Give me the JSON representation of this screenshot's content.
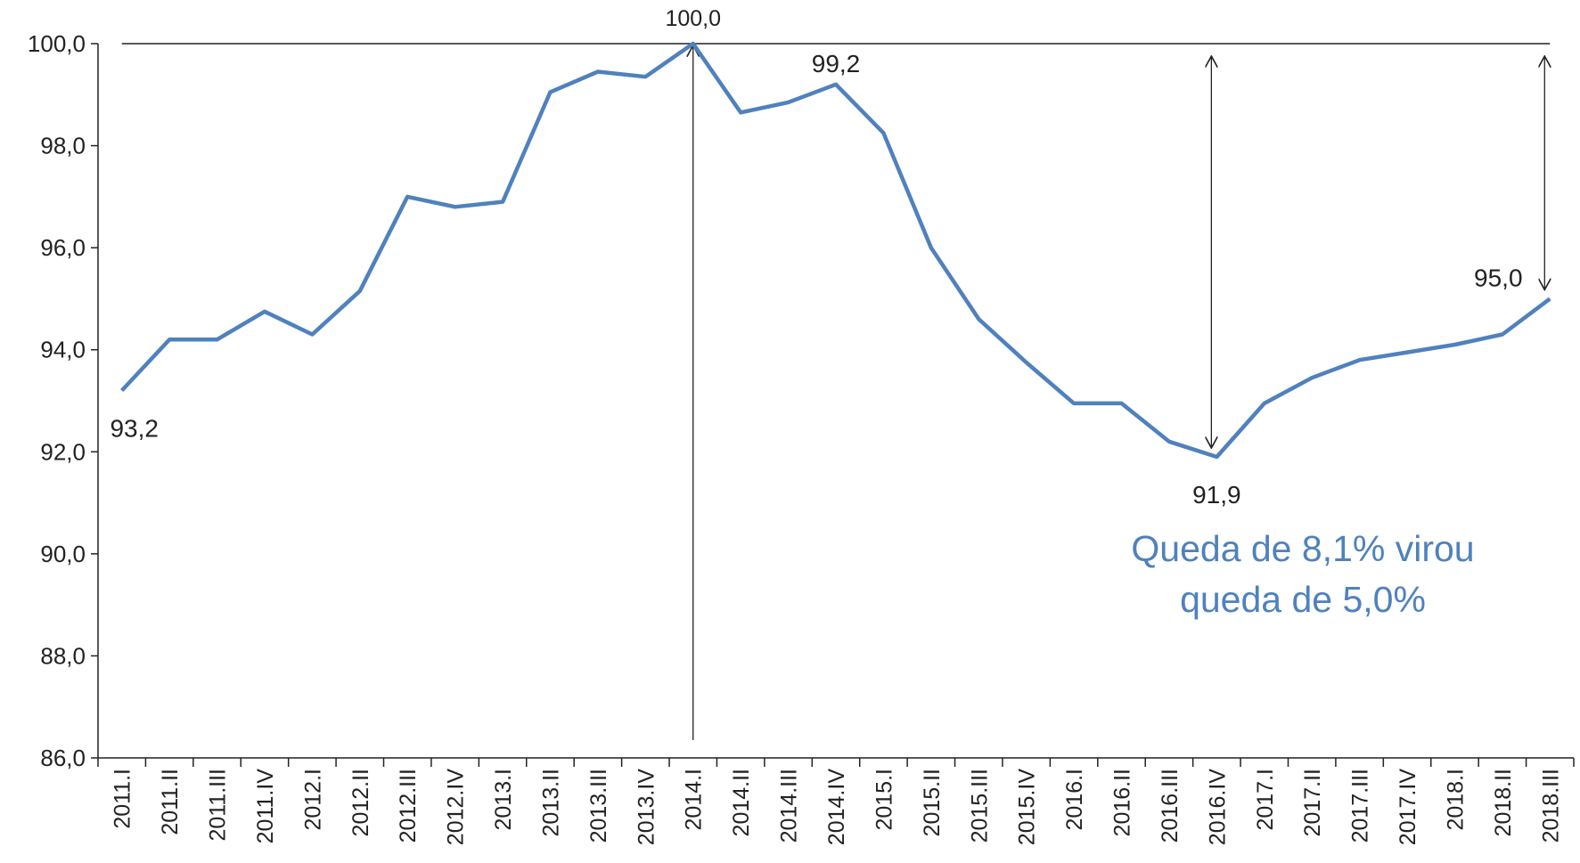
{
  "chart_data": {
    "type": "line",
    "categories": [
      "2011.I",
      "2011.II",
      "2011.III",
      "2011.IV",
      "2012.I",
      "2012.II",
      "2012.III",
      "2012.IV",
      "2013.I",
      "2013.II",
      "2013.III",
      "2013.IV",
      "2014.I",
      "2014.II",
      "2014.III",
      "2014.IV",
      "2015.I",
      "2015.II",
      "2015.III",
      "2015.IV",
      "2016.I",
      "2016.II",
      "2016.III",
      "2016.IV",
      "2017.I",
      "2017.II",
      "2017.III",
      "2017.IV",
      "2018.I",
      "2018.II",
      "2018.III"
    ],
    "series": [
      {
        "color": "#4f81bd",
        "values": [
          93.2,
          94.2,
          94.2,
          94.75,
          94.3,
          95.15,
          97.0,
          96.8,
          96.9,
          99.05,
          99.45,
          99.35,
          100.0,
          98.65,
          98.85,
          99.2,
          98.25,
          96.0,
          94.6,
          93.75,
          92.95,
          92.95,
          92.2,
          91.9,
          92.95,
          93.45,
          93.8,
          93.95,
          94.1,
          94.3,
          95.0
        ],
        "value_labels": [
          "93,2",
          null,
          null,
          null,
          null,
          null,
          null,
          null,
          null,
          null,
          null,
          null,
          "100,0",
          null,
          null,
          "99,2",
          null,
          null,
          null,
          null,
          null,
          null,
          null,
          "91,9",
          null,
          null,
          null,
          null,
          null,
          null,
          "95,0"
        ]
      }
    ],
    "ylim": [
      86,
      100
    ],
    "yticks": [
      {
        "value": 86,
        "label": "86,0"
      },
      {
        "value": 88,
        "label": "88,0"
      },
      {
        "value": 90,
        "label": "90,0"
      },
      {
        "value": 92,
        "label": "92,0"
      },
      {
        "value": 94,
        "label": "94,0"
      },
      {
        "value": 96,
        "label": "96,0"
      },
      {
        "value": 98,
        "label": "98,0"
      },
      {
        "value": 100,
        "label": "100,0"
      }
    ],
    "annotation": [
      "Queda de 8,1% virou",
      "queda de 5,0%"
    ]
  }
}
